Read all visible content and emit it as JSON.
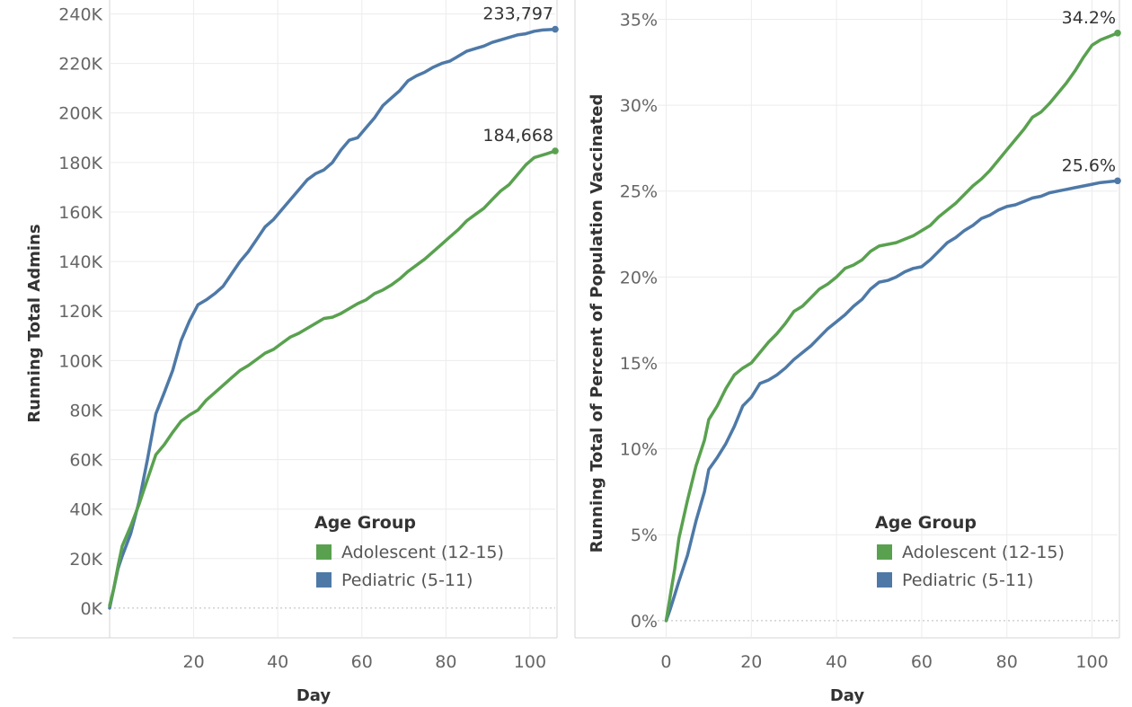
{
  "colors": {
    "adolescent": "#59a14f",
    "pediatric": "#4e79a7"
  },
  "chart_data": [
    {
      "type": "line",
      "title": "",
      "xlabel": "Day",
      "ylabel": "Running Total Admins",
      "xlim": [
        0,
        106
      ],
      "ylim": [
        -12000,
        242000
      ],
      "x_ticks": [
        20,
        40,
        60,
        80,
        100
      ],
      "x_tick_labels": [
        "20",
        "40",
        "60",
        "80",
        "100"
      ],
      "y_ticks": [
        0,
        20000,
        40000,
        60000,
        80000,
        100000,
        120000,
        140000,
        160000,
        180000,
        200000,
        220000,
        240000
      ],
      "y_tick_labels": [
        "0K",
        "20K",
        "40K",
        "60K",
        "80K",
        "100K",
        "120K",
        "140K",
        "160K",
        "180K",
        "200K",
        "220K",
        "240K"
      ],
      "grid": true,
      "legend": {
        "title": "Age Group",
        "position": "bottom-right"
      },
      "end_labels": {
        "Adolescent (12-15)": "184,668",
        "Pediatric (5-11)": "233,797"
      },
      "series": [
        {
          "name": "Adolescent (12-15)",
          "color_key": "adolescent",
          "x": [
            0,
            1,
            2,
            3,
            5,
            7,
            9,
            11,
            13,
            15,
            17,
            19,
            21,
            23,
            25,
            27,
            29,
            31,
            33,
            35,
            37,
            39,
            41,
            43,
            45,
            47,
            49,
            51,
            53,
            55,
            57,
            59,
            61,
            63,
            65,
            67,
            69,
            71,
            73,
            75,
            77,
            79,
            81,
            83,
            85,
            87,
            89,
            91,
            93,
            95,
            97,
            99,
            101,
            103,
            104,
            106
          ],
          "y": [
            1000,
            8000,
            17000,
            25000,
            33000,
            42000,
            52000,
            62000,
            66000,
            71000,
            75500,
            78000,
            80000,
            84000,
            87000,
            90000,
            93000,
            96000,
            98000,
            100500,
            103000,
            104500,
            107000,
            109500,
            111000,
            113000,
            115000,
            117000,
            117500,
            119000,
            121000,
            123000,
            124500,
            127000,
            128500,
            130500,
            133000,
            136000,
            138500,
            141000,
            144000,
            147000,
            150000,
            153000,
            156500,
            159000,
            161500,
            165000,
            168500,
            171000,
            175000,
            179000,
            182000,
            183000,
            183500,
            184668
          ]
        },
        {
          "name": "Pediatric (5-11)",
          "color_key": "pediatric",
          "x": [
            0,
            1,
            2,
            3,
            5,
            7,
            9,
            11,
            13,
            15,
            17,
            19,
            21,
            23,
            25,
            27,
            29,
            31,
            33,
            35,
            37,
            39,
            41,
            43,
            45,
            47,
            49,
            51,
            53,
            55,
            57,
            59,
            61,
            63,
            65,
            67,
            69,
            71,
            73,
            75,
            77,
            79,
            81,
            83,
            85,
            87,
            89,
            91,
            93,
            95,
            97,
            99,
            101,
            103,
            106
          ],
          "y": [
            0,
            8000,
            16000,
            21000,
            30000,
            43000,
            60000,
            78500,
            87000,
            96000,
            108000,
            116000,
            122500,
            124500,
            127000,
            130000,
            135000,
            140000,
            144000,
            149000,
            154000,
            157000,
            161000,
            165000,
            169000,
            173000,
            175500,
            177000,
            180000,
            185000,
            189000,
            190000,
            194000,
            198000,
            203000,
            206000,
            209000,
            213000,
            215000,
            216500,
            218500,
            220000,
            221000,
            223000,
            225000,
            226000,
            227000,
            228500,
            229500,
            230500,
            231500,
            232000,
            233000,
            233500,
            233797
          ]
        }
      ]
    },
    {
      "type": "line",
      "title": "",
      "xlabel": "Day",
      "ylabel": "Running Total of Percent of Population Vaccinated",
      "xlim": [
        -2,
        106
      ],
      "ylim": [
        -1,
        35.6
      ],
      "x_ticks": [
        0,
        20,
        40,
        60,
        80,
        100
      ],
      "x_tick_labels": [
        "0",
        "20",
        "40",
        "60",
        "80",
        "100"
      ],
      "y_ticks": [
        0,
        5,
        10,
        15,
        20,
        25,
        30,
        35
      ],
      "y_tick_labels": [
        "0%",
        "5%",
        "10%",
        "15%",
        "20%",
        "25%",
        "30%",
        "35%"
      ],
      "grid": true,
      "legend": {
        "title": "Age Group",
        "position": "bottom-right"
      },
      "end_labels": {
        "Adolescent (12-15)": "34.2%",
        "Pediatric (5-11)": "25.6%"
      },
      "series": [
        {
          "name": "Adolescent (12-15)",
          "color_key": "adolescent",
          "x": [
            0,
            1,
            2,
            3,
            5,
            7,
            9,
            10,
            12,
            14,
            16,
            18,
            20,
            22,
            24,
            26,
            28,
            30,
            32,
            34,
            36,
            38,
            40,
            42,
            44,
            46,
            48,
            50,
            52,
            54,
            56,
            58,
            60,
            62,
            64,
            66,
            68,
            70,
            72,
            74,
            76,
            78,
            80,
            82,
            84,
            86,
            88,
            90,
            92,
            94,
            96,
            98,
            100,
            102,
            104,
            106
          ],
          "y": [
            0,
            1.5,
            3,
            4.8,
            7,
            9,
            10.5,
            11.7,
            12.5,
            13.5,
            14.3,
            14.7,
            15,
            15.6,
            16.2,
            16.7,
            17.3,
            18,
            18.3,
            18.8,
            19.3,
            19.6,
            20,
            20.5,
            20.7,
            21,
            21.5,
            21.8,
            21.9,
            22,
            22.2,
            22.4,
            22.7,
            23,
            23.5,
            23.9,
            24.3,
            24.8,
            25.3,
            25.7,
            26.2,
            26.8,
            27.4,
            28,
            28.6,
            29.3,
            29.6,
            30.1,
            30.7,
            31.3,
            32,
            32.8,
            33.5,
            33.8,
            34.0,
            34.2
          ]
        },
        {
          "name": "Pediatric (5-11)",
          "color_key": "pediatric",
          "x": [
            0,
            1,
            2,
            3,
            5,
            7,
            9,
            10,
            12,
            14,
            16,
            18,
            20,
            22,
            24,
            26,
            28,
            30,
            32,
            34,
            36,
            38,
            40,
            42,
            44,
            46,
            48,
            50,
            52,
            54,
            56,
            58,
            60,
            62,
            64,
            66,
            68,
            70,
            72,
            74,
            76,
            78,
            80,
            82,
            84,
            86,
            88,
            90,
            92,
            94,
            96,
            98,
            100,
            102,
            104,
            106
          ],
          "y": [
            0,
            0.7,
            1.5,
            2.3,
            3.8,
            5.8,
            7.5,
            8.8,
            9.5,
            10.3,
            11.3,
            12.5,
            13,
            13.8,
            14,
            14.3,
            14.7,
            15.2,
            15.6,
            16,
            16.5,
            17,
            17.4,
            17.8,
            18.3,
            18.7,
            19.3,
            19.7,
            19.8,
            20,
            20.3,
            20.5,
            20.6,
            21,
            21.5,
            22,
            22.3,
            22.7,
            23,
            23.4,
            23.6,
            23.9,
            24.1,
            24.2,
            24.4,
            24.6,
            24.7,
            24.9,
            25,
            25.1,
            25.2,
            25.3,
            25.4,
            25.5,
            25.55,
            25.6
          ]
        }
      ]
    }
  ]
}
